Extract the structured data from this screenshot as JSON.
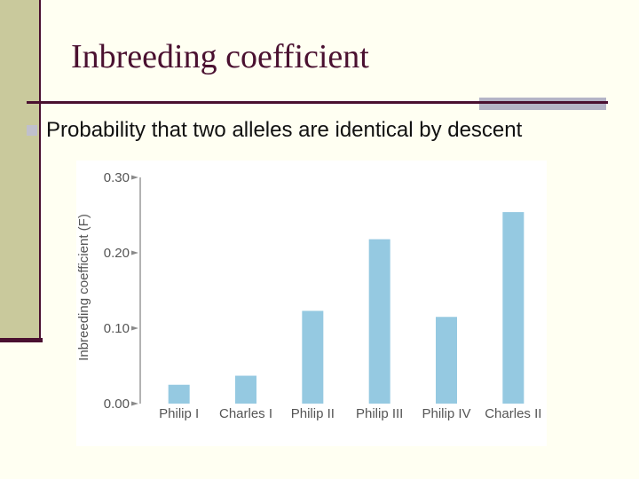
{
  "slide": {
    "title": "Inbreeding coefficient",
    "bullet": "Probability that two alleles are identical by descent"
  },
  "colors": {
    "title": "#4a1030",
    "bar": "#95c9e1",
    "sidebar": "#c9c99c",
    "accent": "#b4b4c6"
  },
  "chart_data": {
    "type": "bar",
    "categories": [
      "Philip I",
      "Charles I",
      "Philip II",
      "Philip III",
      "Philip IV",
      "Charles II"
    ],
    "values": [
      0.025,
      0.037,
      0.123,
      0.218,
      0.115,
      0.254
    ],
    "ylabel": "Inbreeding coefficient (F)",
    "ylim": [
      0,
      0.3
    ],
    "yticks": [
      "0.00",
      "0.10",
      "0.20",
      "0.30"
    ],
    "ytick_values": [
      0,
      0.1,
      0.2,
      0.3
    ],
    "grid": false
  }
}
